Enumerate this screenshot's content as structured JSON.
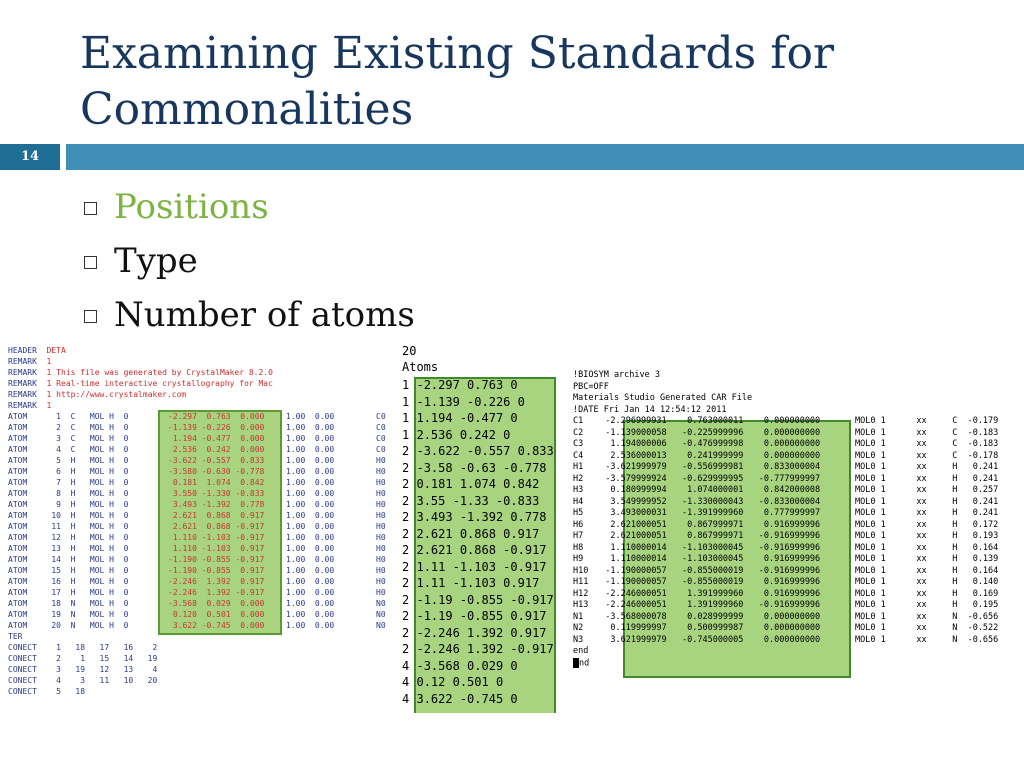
{
  "slide": {
    "title_line1": "Examining Existing Standards for",
    "title_line2": "Commonalities",
    "page_number": "14",
    "bullets": [
      {
        "text": "Positions",
        "highlight": true
      },
      {
        "text": "Type",
        "highlight": false
      },
      {
        "text": "Number of atoms",
        "highlight": false
      }
    ]
  },
  "pdb": {
    "header_lines": [
      {
        "k": "HEADER",
        "v": "DETA"
      },
      {
        "k": "REMARK",
        "v": "1"
      },
      {
        "k": "REMARK",
        "v": "1 This file was generated by CrystalMaker 8.2.0"
      },
      {
        "k": "REMARK",
        "v": "1 Real-time interactive crystallography for Mac"
      },
      {
        "k": "REMARK",
        "v": "1 http://www.crystalmaker.com"
      },
      {
        "k": "REMARK",
        "v": "1"
      }
    ],
    "atoms": [
      {
        "pre": "ATOM      1  C   MOL H  0",
        "xyz": "-2.297  0.763  0.000",
        "post": "1.00  0.00",
        "el": "C0"
      },
      {
        "pre": "ATOM      2  C   MOL H  0",
        "xyz": "-1.139 -0.226  0.000",
        "post": "1.00  0.00",
        "el": "C0"
      },
      {
        "pre": "ATOM      3  C   MOL H  0",
        "xyz": " 1.194 -0.477  0.000",
        "post": "1.00  0.00",
        "el": "C0"
      },
      {
        "pre": "ATOM      4  C   MOL H  0",
        "xyz": " 2.536  0.242  0.000",
        "post": "1.00  0.00",
        "el": "C0"
      },
      {
        "pre": "ATOM      5  H   MOL H  0",
        "xyz": "-3.622 -0.557  0.833",
        "post": "1.00  0.00",
        "el": "H0"
      },
      {
        "pre": "ATOM      6  H   MOL H  0",
        "xyz": "-3.580 -0.630 -0.778",
        "post": "1.00  0.00",
        "el": "H0"
      },
      {
        "pre": "ATOM      7  H   MOL H  0",
        "xyz": " 0.181  1.074  0.842",
        "post": "1.00  0.00",
        "el": "H0"
      },
      {
        "pre": "ATOM      8  H   MOL H  0",
        "xyz": " 3.550 -1.330 -0.833",
        "post": "1.00  0.00",
        "el": "H0"
      },
      {
        "pre": "ATOM      9  H   MOL H  0",
        "xyz": " 3.493 -1.392  0.778",
        "post": "1.00  0.00",
        "el": "H0"
      },
      {
        "pre": "ATOM     10  H   MOL H  0",
        "xyz": " 2.621  0.868  0.917",
        "post": "1.00  0.00",
        "el": "H0"
      },
      {
        "pre": "ATOM     11  H   MOL H  0",
        "xyz": " 2.621  0.868 -0.917",
        "post": "1.00  0.00",
        "el": "H0"
      },
      {
        "pre": "ATOM     12  H   MOL H  0",
        "xyz": " 1.110 -1.103 -0.917",
        "post": "1.00  0.00",
        "el": "H0"
      },
      {
        "pre": "ATOM     13  H   MOL H  0",
        "xyz": " 1.110 -1.103  0.917",
        "post": "1.00  0.00",
        "el": "H0"
      },
      {
        "pre": "ATOM     14  H   MOL H  0",
        "xyz": "-1.190 -0.855 -0.917",
        "post": "1.00  0.00",
        "el": "H0"
      },
      {
        "pre": "ATOM     15  H   MOL H  0",
        "xyz": "-1.190 -0.855  0.917",
        "post": "1.00  0.00",
        "el": "H0"
      },
      {
        "pre": "ATOM     16  H   MOL H  0",
        "xyz": "-2.246  1.392  0.917",
        "post": "1.00  0.00",
        "el": "H0"
      },
      {
        "pre": "ATOM     17  H   MOL H  0",
        "xyz": "-2.246  1.392 -0.917",
        "post": "1.00  0.00",
        "el": "H0"
      },
      {
        "pre": "ATOM     18  N   MOL H  0",
        "xyz": "-3.568  0.029  0.000",
        "post": "1.00  0.00",
        "el": "N0"
      },
      {
        "pre": "ATOM     19  N   MOL H  0",
        "xyz": " 0.120  0.501  0.000",
        "post": "1.00  0.00",
        "el": "N0"
      },
      {
        "pre": "ATOM     20  N   MOL H  0",
        "xyz": " 3.622 -0.745  0.000",
        "post": "1.00  0.00",
        "el": "N0"
      }
    ],
    "footer_lines": [
      "TER",
      "CONECT    1   18   17   16    2",
      "CONECT    2    1   15   14   19",
      "CONECT    3   19   12   13    4",
      "CONECT    4    3   11   10   20",
      "CONECT    5   18"
    ]
  },
  "xyz": {
    "count": "20",
    "label": "Atoms",
    "lines": [
      {
        "t": "1",
        "c": "-2.297 0.763 0"
      },
      {
        "t": "1",
        "c": "-1.139 -0.226 0"
      },
      {
        "t": "1",
        "c": "1.194 -0.477 0"
      },
      {
        "t": "1",
        "c": "2.536 0.242 0"
      },
      {
        "t": "2",
        "c": "-3.622 -0.557 0.833"
      },
      {
        "t": "2",
        "c": "-3.58 -0.63 -0.778"
      },
      {
        "t": "2",
        "c": "0.181 1.074 0.842"
      },
      {
        "t": "2",
        "c": "3.55 -1.33 -0.833"
      },
      {
        "t": "2",
        "c": "3.493 -1.392 0.778"
      },
      {
        "t": "2",
        "c": "2.621 0.868 0.917"
      },
      {
        "t": "2",
        "c": "2.621 0.868 -0.917"
      },
      {
        "t": "2",
        "c": "1.11 -1.103 -0.917"
      },
      {
        "t": "2",
        "c": "1.11 -1.103 0.917"
      },
      {
        "t": "2",
        "c": "-1.19 -0.855 -0.917"
      },
      {
        "t": "2",
        "c": "-1.19 -0.855 0.917"
      },
      {
        "t": "2",
        "c": "-2.246 1.392 0.917"
      },
      {
        "t": "2",
        "c": "-2.246 1.392 -0.917"
      },
      {
        "t": "4",
        "c": "-3.568 0.029 0"
      },
      {
        "t": "4",
        "c": "0.12 0.501 0"
      },
      {
        "t": "4",
        "c": "3.622 -0.745 0"
      }
    ]
  },
  "car": {
    "header_lines": [
      "!BIOSYM archive 3",
      "PBC=OFF",
      "Materials Studio Generated CAR File",
      "!DATE Fri Jan 14 12:54:12 2011"
    ],
    "atoms": [
      {
        "name": "C1",
        "coords": "  -2.296999931    0.763000011    0.000000000",
        "rest": "MOL0 1      xx     C  -0.179"
      },
      {
        "name": "C2",
        "coords": "  -1.139000058   -0.225999996    0.000000000",
        "rest": "MOL0 1      xx     C  -0.183"
      },
      {
        "name": "C3",
        "coords": "   1.194000006   -0.476999998    0.000000000",
        "rest": "MOL0 1      xx     C  -0.183"
      },
      {
        "name": "C4",
        "coords": "   2.536000013    0.241999999    0.000000000",
        "rest": "MOL0 1      xx     C  -0.178"
      },
      {
        "name": "H1",
        "coords": "  -3.621999979   -0.556999981    0.833000004",
        "rest": "MOL0 1      xx     H   0.241"
      },
      {
        "name": "H2",
        "coords": "  -3.579999924   -0.629999995   -0.777999997",
        "rest": "MOL0 1      xx     H   0.241"
      },
      {
        "name": "H3",
        "coords": "   0.180999994    1.074000001    0.842000008",
        "rest": "MOL0 1      xx     H   0.257"
      },
      {
        "name": "H4",
        "coords": "   3.549999952   -1.330000043   -0.833000004",
        "rest": "MOL0 1      xx     H   0.241"
      },
      {
        "name": "H5",
        "coords": "   3.493000031   -1.391999960    0.777999997",
        "rest": "MOL0 1      xx     H   0.241"
      },
      {
        "name": "H6",
        "coords": "   2.621000051    0.867999971    0.916999996",
        "rest": "MOL0 1      xx     H   0.172"
      },
      {
        "name": "H7",
        "coords": "   2.621000051    0.867999971   -0.916999996",
        "rest": "MOL0 1      xx     H   0.193"
      },
      {
        "name": "H8",
        "coords": "   1.110000014   -1.103000045   -0.916999996",
        "rest": "MOL0 1      xx     H   0.164"
      },
      {
        "name": "H9",
        "coords": "   1.110000014   -1.103000045    0.916999996",
        "rest": "MOL0 1      xx     H   0.139"
      },
      {
        "name": "H10",
        "coords": "  -1.190000057   -0.855000019   -0.916999996",
        "rest": "MOL0 1      xx     H   0.164"
      },
      {
        "name": "H11",
        "coords": "  -1.190000057   -0.855000019    0.916999996",
        "rest": "MOL0 1      xx     H   0.140"
      },
      {
        "name": "H12",
        "coords": "  -2.246000051    1.391999960    0.916999996",
        "rest": "MOL0 1      xx     H   0.169"
      },
      {
        "name": "H13",
        "coords": "  -2.246000051    1.391999960   -0.916999996",
        "rest": "MOL0 1      xx     H   0.195"
      },
      {
        "name": "N1",
        "coords": "  -3.568000078    0.028999999    0.000000000",
        "rest": "MOL0 1      xx     N  -0.656"
      },
      {
        "name": "N2",
        "coords": "   0.119999997    0.500999987    0.000000000",
        "rest": "MOL0 1      xx     N  -0.522"
      },
      {
        "name": "N3",
        "coords": "   3.621999979   -0.745000005    0.000000000",
        "rest": "MOL0 1      xx     N  -0.656"
      }
    ],
    "footer_lines": [
      "end",
      "end"
    ]
  }
}
